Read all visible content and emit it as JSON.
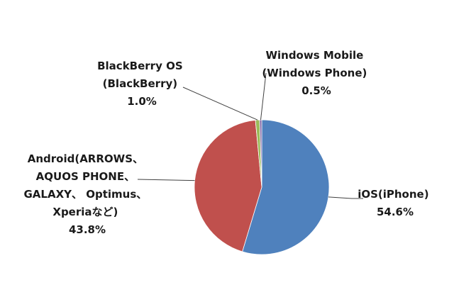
{
  "chart_data": {
    "type": "pie",
    "slices": [
      {
        "label_lines": [
          "iOS(iPhone)",
          "54.6%"
        ],
        "value": 54.6,
        "color": "#4f81bd"
      },
      {
        "label_lines": [
          "Android(ARROWS、",
          "AQUOS PHONE、",
          "GALAXY、 Optimus、",
          "Xperiaなど)",
          "43.8%"
        ],
        "value": 43.8,
        "color": "#c0504d"
      },
      {
        "label_lines": [
          "BlackBerry OS",
          "(BlackBerry)",
          "1.0%"
        ],
        "value": 1.0,
        "color": "#9bbb59"
      },
      {
        "label_lines": [
          "Windows Mobile",
          "(Windows Phone)",
          "0.5%"
        ],
        "value": 0.5,
        "color": "#8064a2"
      }
    ]
  }
}
